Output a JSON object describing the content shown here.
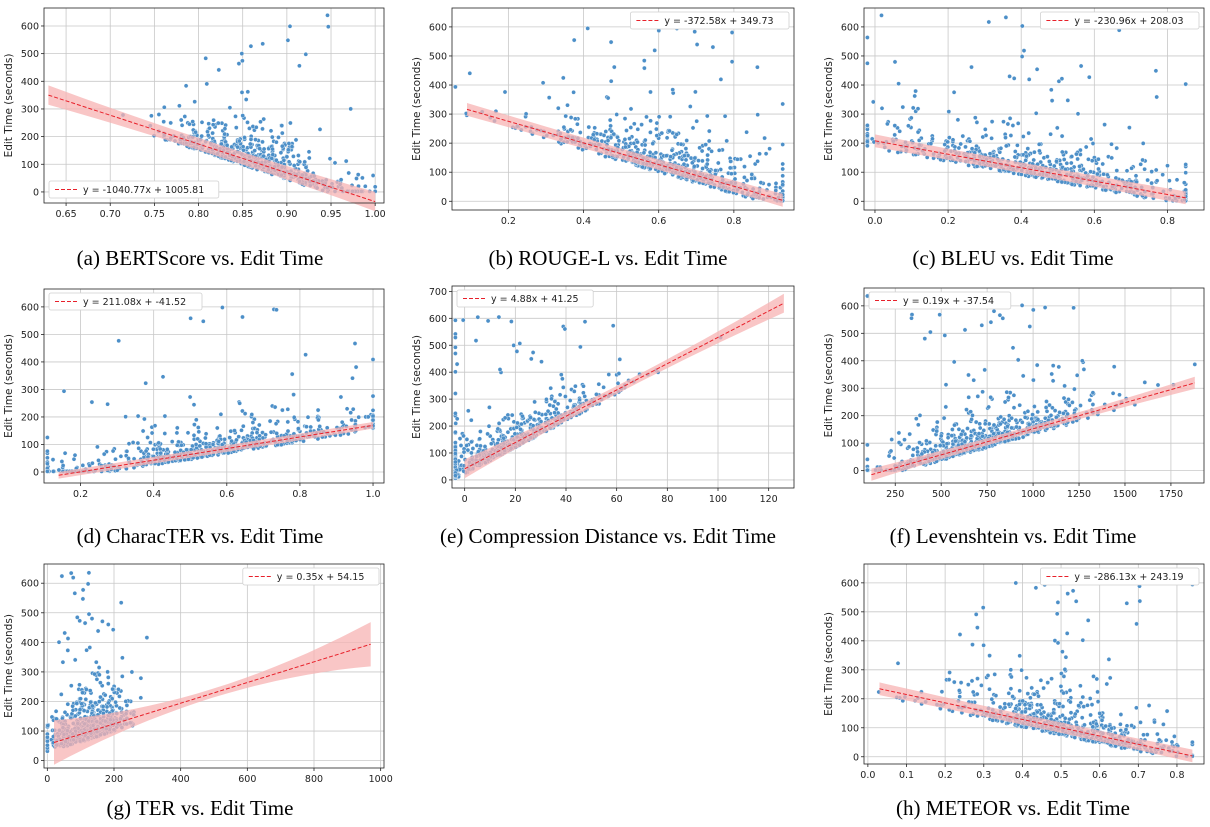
{
  "chart_data": [
    {
      "id": "a",
      "type": "scatter",
      "caption": "(a) BERTScore vs. Edit Time",
      "ylabel": "Edit Time (seconds)",
      "xlim": [
        0.625,
        1.01
      ],
      "ylim": [
        -40,
        665
      ],
      "xticks": [
        "0.65",
        "0.70",
        "0.75",
        "0.80",
        "0.85",
        "0.90",
        "0.95",
        "1.00"
      ],
      "xtick_values": [
        0.65,
        0.7,
        0.75,
        0.8,
        0.85,
        0.9,
        0.95,
        1.0
      ],
      "yticks": [
        "0",
        "100",
        "200",
        "300",
        "400",
        "500",
        "600"
      ],
      "ytick_values": [
        0,
        100,
        200,
        300,
        400,
        500,
        600
      ],
      "grid": true,
      "legend_position": "bottom-left",
      "fit": {
        "label": "y = -1040.77x + 1005.81",
        "slope": -1040.77,
        "intercept": 1005.81,
        "x_range": [
          0.63,
          1.0
        ],
        "band": [
          22,
          35
        ]
      },
      "point_summary": {
        "x_center": 0.865,
        "x_spread": 0.05,
        "n": 620,
        "max_y": 640,
        "noise": 80
      }
    },
    {
      "id": "b",
      "type": "scatter",
      "caption": "(b) ROUGE-L vs. Edit Time",
      "ylabel": "Edit Time (seconds)",
      "xlim": [
        0.05,
        0.96
      ],
      "ylim": [
        -30,
        665
      ],
      "xticks": [
        "0.2",
        "0.4",
        "0.6",
        "0.8"
      ],
      "xtick_values": [
        0.2,
        0.4,
        0.6,
        0.8
      ],
      "yticks": [
        "0",
        "100",
        "200",
        "300",
        "400",
        "500",
        "600"
      ],
      "ytick_values": [
        0,
        100,
        200,
        300,
        400,
        500,
        600
      ],
      "grid": true,
      "legend_position": "top-right",
      "fit": {
        "label": "y = -372.58x + 349.73",
        "slope": -372.58,
        "intercept": 349.73,
        "x_range": [
          0.09,
          0.93
        ],
        "band": [
          18,
          22
        ]
      },
      "point_summary": {
        "x_center": 0.62,
        "x_spread": 0.18,
        "n": 620,
        "max_y": 615,
        "noise": 85
      }
    },
    {
      "id": "c",
      "type": "scatter",
      "caption": "(c) BLEU vs. Edit Time",
      "ylabel": "Edit Time (seconds)",
      "xlim": [
        -0.03,
        0.9
      ],
      "ylim": [
        -30,
        665
      ],
      "xticks": [
        "0.0",
        "0.2",
        "0.4",
        "0.6",
        "0.8"
      ],
      "xtick_values": [
        0.0,
        0.2,
        0.4,
        0.6,
        0.8
      ],
      "yticks": [
        "0",
        "100",
        "200",
        "300",
        "400",
        "500",
        "600"
      ],
      "ytick_values": [
        0,
        100,
        200,
        300,
        400,
        500,
        600
      ],
      "grid": true,
      "legend_position": "top-right",
      "fit": {
        "label": "y = -230.96x + 208.03",
        "slope": -230.96,
        "intercept": 208.03,
        "x_range": [
          0.0,
          0.85
        ],
        "band": [
          18,
          22
        ]
      },
      "point_summary": {
        "x_center": 0.45,
        "x_spread": 0.24,
        "n": 620,
        "max_y": 640,
        "noise": 85
      }
    },
    {
      "id": "d",
      "type": "scatter",
      "caption": "(d) CharacTER vs. Edit Time",
      "ylabel": "Edit Time (seconds)",
      "xlim": [
        0.1,
        1.03
      ],
      "ylim": [
        -40,
        665
      ],
      "xticks": [
        "0.2",
        "0.4",
        "0.6",
        "0.8",
        "1.0"
      ],
      "xtick_values": [
        0.2,
        0.4,
        0.6,
        0.8,
        1.0
      ],
      "yticks": [
        "0",
        "100",
        "200",
        "300",
        "400",
        "500",
        "600"
      ],
      "ytick_values": [
        0,
        100,
        200,
        300,
        400,
        500,
        600
      ],
      "grid": true,
      "legend_position": "top-left",
      "fit": {
        "label": "y = 211.08x + -41.52",
        "slope": 211.08,
        "intercept": -41.52,
        "x_range": [
          0.14,
          1.0
        ],
        "band": [
          12,
          12
        ]
      },
      "point_summary": {
        "x_center": 0.55,
        "x_spread": 0.25,
        "n": 620,
        "max_y": 640,
        "noise": 60
      }
    },
    {
      "id": "e",
      "type": "scatter",
      "caption": "(e) Compression Distance vs. Edit Time",
      "ylabel": "Edit Time (seconds)",
      "xlim": [
        -5,
        130
      ],
      "ylim": [
        -30,
        720
      ],
      "xticks": [
        "0",
        "20",
        "40",
        "60",
        "80",
        "100",
        "120"
      ],
      "xtick_values": [
        0,
        20,
        40,
        60,
        80,
        100,
        120
      ],
      "yticks": [
        "0",
        "100",
        "200",
        "300",
        "400",
        "500",
        "600",
        "700"
      ],
      "ytick_values": [
        0,
        100,
        200,
        300,
        400,
        500,
        600,
        700
      ],
      "grid": true,
      "legend_position": "top-left",
      "fit": {
        "label": "y = 4.88x + 41.25",
        "slope": 4.88,
        "intercept": 41.25,
        "x_range": [
          0,
          126
        ],
        "band": [
          15,
          35
        ]
      },
      "point_summary": {
        "x_center": 15,
        "x_spread": 22,
        "n": 620,
        "max_y": 620,
        "noise": 60
      }
    },
    {
      "id": "f",
      "type": "scatter",
      "caption": "(f) Levenshtein vs. Edit Time",
      "ylabel": "Edit Time (seconds)",
      "xlim": [
        80,
        1930
      ],
      "ylim": [
        -45,
        665
      ],
      "xticks": [
        "250",
        "500",
        "750",
        "1000",
        "1250",
        "1500",
        "1750"
      ],
      "xtick_values": [
        250,
        500,
        750,
        1000,
        1250,
        1500,
        1750
      ],
      "yticks": [
        "0",
        "100",
        "200",
        "300",
        "400",
        "500",
        "600"
      ],
      "ytick_values": [
        0,
        100,
        200,
        300,
        400,
        500,
        600
      ],
      "grid": true,
      "legend_position": "top-left",
      "fit": {
        "label": "y = 0.19x + -37.54",
        "slope": 0.19,
        "intercept": -37.54,
        "x_range": [
          120,
          1880
        ],
        "band": [
          12,
          22
        ]
      },
      "point_summary": {
        "x_center": 700,
        "x_spread": 320,
        "n": 620,
        "max_y": 640,
        "noise": 70
      }
    },
    {
      "id": "g",
      "type": "scatter",
      "caption": "(g) TER vs. Edit Time",
      "ylabel": "Edit Time (seconds)",
      "xlim": [
        -10,
        1010
      ],
      "ylim": [
        -25,
        665
      ],
      "xticks": [
        "0",
        "200",
        "400",
        "600",
        "800",
        "1000"
      ],
      "xtick_values": [
        0,
        200,
        400,
        600,
        800,
        1000
      ],
      "yticks": [
        "0",
        "100",
        "200",
        "300",
        "400",
        "500",
        "600"
      ],
      "ytick_values": [
        0,
        100,
        200,
        300,
        400,
        500,
        600
      ],
      "grid": true,
      "legend_position": "top-right",
      "fit": {
        "label": "y = 0.35x + 54.15",
        "slope": 0.35,
        "intercept": 54.15,
        "x_range": [
          20,
          970
        ],
        "band": [
          15,
          75
        ]
      },
      "point_summary": {
        "x_center": 120,
        "x_spread": 60,
        "n": 620,
        "max_y": 640,
        "noise": 85
      }
    },
    {
      "id": "h",
      "type": "scatter",
      "caption": "(h) METEOR vs. Edit Time",
      "ylabel": "Edit Time (seconds)",
      "xlim": [
        -0.01,
        0.87
      ],
      "ylim": [
        -25,
        665
      ],
      "xticks": [
        "0.0",
        "0.1",
        "0.2",
        "0.3",
        "0.4",
        "0.5",
        "0.6",
        "0.7",
        "0.8"
      ],
      "xtick_values": [
        0.0,
        0.1,
        0.2,
        0.3,
        0.4,
        0.5,
        0.6,
        0.7,
        0.8
      ],
      "yticks": [
        "0",
        "100",
        "200",
        "300",
        "400",
        "500",
        "600"
      ],
      "ytick_values": [
        0,
        100,
        200,
        300,
        400,
        500,
        600
      ],
      "grid": true,
      "legend_position": "top-right",
      "fit": {
        "label": "y = -286.13x + 243.19",
        "slope": -286.13,
        "intercept": 243.19,
        "x_range": [
          0.03,
          0.84
        ],
        "band": [
          18,
          22
        ]
      },
      "point_summary": {
        "x_center": 0.5,
        "x_spread": 0.15,
        "n": 620,
        "max_y": 640,
        "noise": 85
      }
    }
  ],
  "colors": {
    "points": "#4c8fc8",
    "point_edge": "#ffffff",
    "fit_line": "#e8202a",
    "band": "#f7b3b3",
    "grid": "#c8c8c8"
  }
}
